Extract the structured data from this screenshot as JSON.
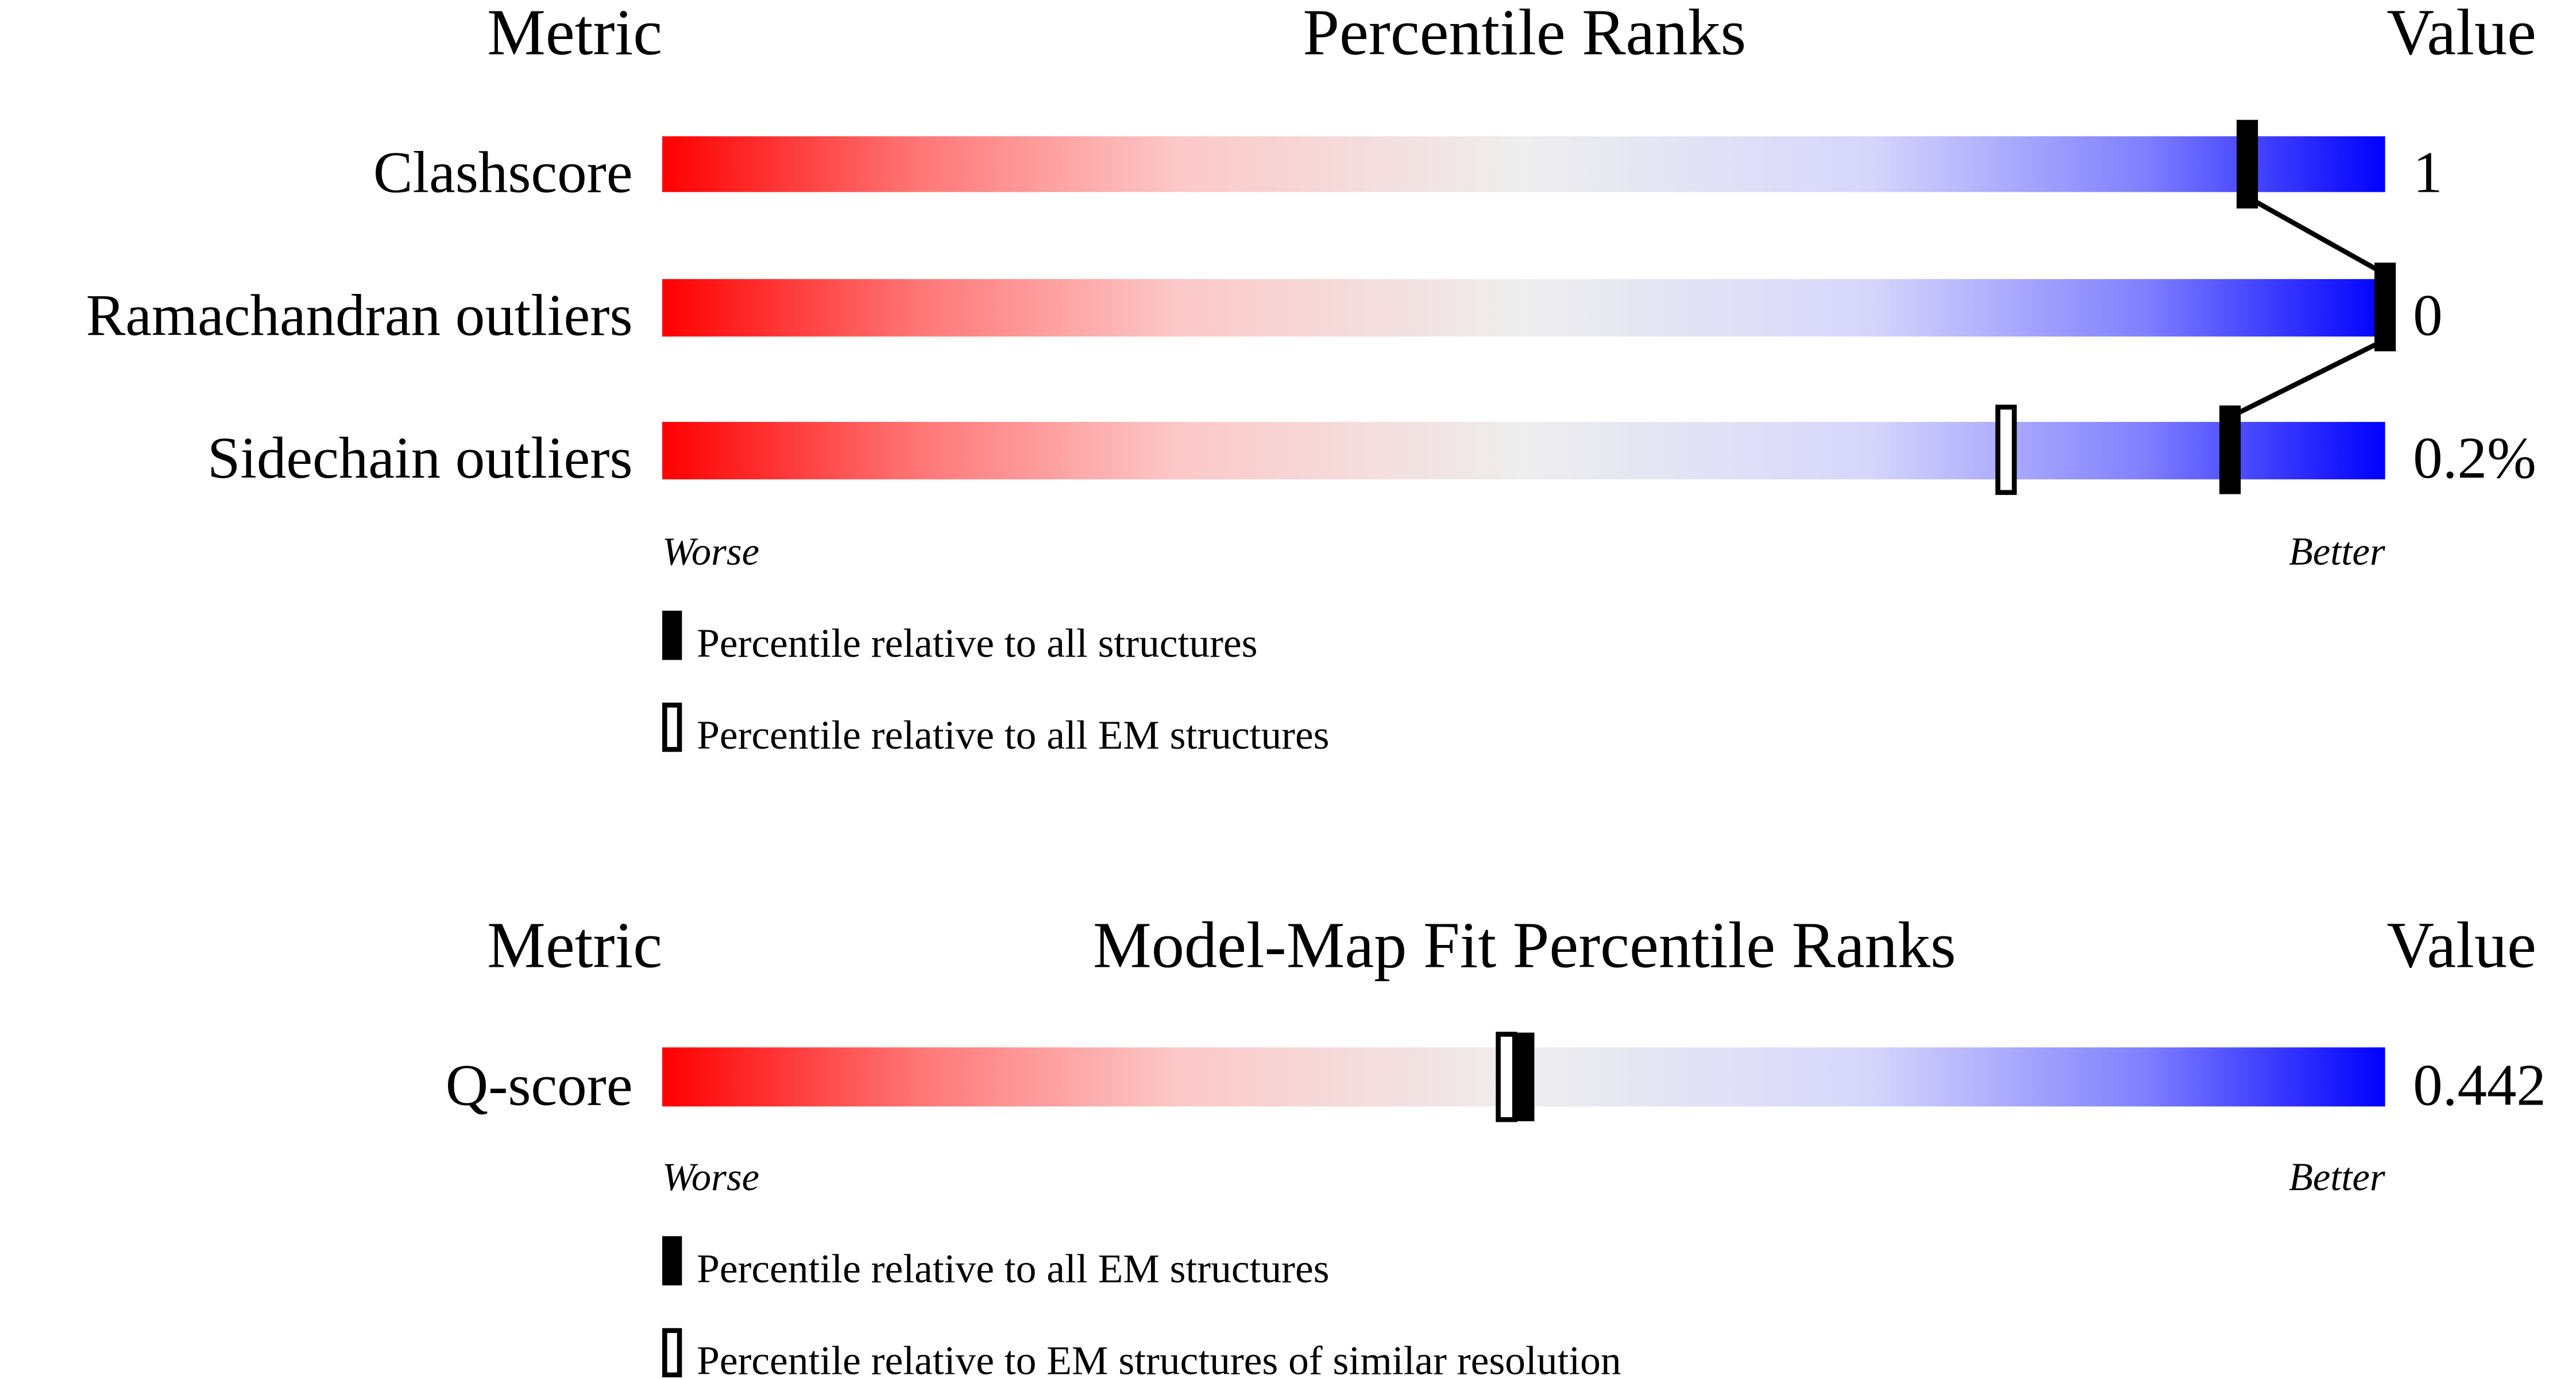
{
  "colors": {
    "worse": "#ff0000",
    "middle": "#eeeeee",
    "better": "#0000ff",
    "marker": "#000000"
  },
  "chart_data": [
    {
      "type": "slider",
      "header": {
        "metric": "Metric",
        "title": "Percentile Ranks",
        "value": "Value"
      },
      "xlim": [
        0,
        100
      ],
      "worse_label": "Worse",
      "better_label": "Better",
      "legend": [
        {
          "marker": "filled",
          "label": "Percentile relative to all structures"
        },
        {
          "marker": "open",
          "label": "Percentile relative to all EM structures"
        }
      ],
      "rows": [
        {
          "metric": "Clashscore",
          "value": "1",
          "percentile_all": 92,
          "percentile_em": null
        },
        {
          "metric": "Ramachandran outliers",
          "value": "0",
          "percentile_all": 100,
          "percentile_em": null
        },
        {
          "metric": "Sidechain outliers",
          "value": "0.2%",
          "percentile_all": 91,
          "percentile_em": 78
        }
      ]
    },
    {
      "type": "slider",
      "header": {
        "metric": "Metric",
        "title": "Model-Map Fit Percentile Ranks",
        "value": "Value"
      },
      "xlim": [
        0,
        100
      ],
      "worse_label": "Worse",
      "better_label": "Better",
      "legend": [
        {
          "marker": "filled",
          "label": "Percentile relative to all EM structures"
        },
        {
          "marker": "open",
          "label": "Percentile relative to EM structures of similar resolution"
        }
      ],
      "rows": [
        {
          "metric": "Q-score",
          "value": "0.442",
          "percentile_all": 50,
          "percentile_em": 49
        }
      ]
    }
  ]
}
